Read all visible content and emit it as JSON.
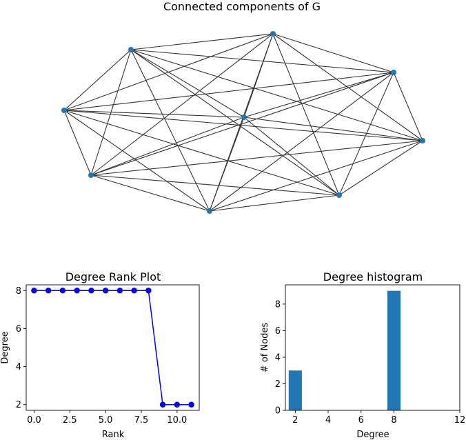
{
  "chart_data": [
    {
      "type": "network",
      "title": "Connected components of G",
      "node_color": "#1f77b4",
      "edge_color": "#333333",
      "nodes": [
        {
          "id": 0
        },
        {
          "id": 1
        },
        {
          "id": 2
        },
        {
          "id": 3
        },
        {
          "id": 4
        },
        {
          "id": 5
        },
        {
          "id": 6
        },
        {
          "id": 7
        },
        {
          "id": 8
        }
      ],
      "edges": [
        [
          0,
          1
        ],
        [
          0,
          2
        ],
        [
          0,
          3
        ],
        [
          0,
          4
        ],
        [
          0,
          5
        ],
        [
          0,
          6
        ],
        [
          0,
          7
        ],
        [
          0,
          8
        ],
        [
          1,
          2
        ],
        [
          1,
          3
        ],
        [
          1,
          4
        ],
        [
          1,
          5
        ],
        [
          1,
          6
        ],
        [
          1,
          7
        ],
        [
          1,
          8
        ],
        [
          2,
          3
        ],
        [
          2,
          4
        ],
        [
          2,
          5
        ],
        [
          2,
          6
        ],
        [
          2,
          7
        ],
        [
          2,
          8
        ],
        [
          3,
          4
        ],
        [
          3,
          5
        ],
        [
          3,
          6
        ],
        [
          3,
          7
        ],
        [
          3,
          8
        ],
        [
          4,
          5
        ],
        [
          4,
          6
        ],
        [
          4,
          7
        ],
        [
          4,
          8
        ],
        [
          5,
          6
        ],
        [
          5,
          7
        ],
        [
          5,
          8
        ],
        [
          6,
          7
        ],
        [
          6,
          8
        ],
        [
          7,
          8
        ]
      ]
    },
    {
      "type": "line",
      "title": "Degree Rank Plot",
      "xlabel": "Rank",
      "ylabel": "Degree",
      "color": "#0000ff",
      "x": [
        0,
        1,
        2,
        3,
        4,
        5,
        6,
        7,
        8,
        9,
        10,
        11
      ],
      "y": [
        8,
        8,
        8,
        8,
        8,
        8,
        8,
        8,
        8,
        2,
        2,
        2
      ],
      "xlim": [
        -0.55,
        11.55
      ],
      "ylim": [
        1.7,
        8.3
      ],
      "xticks": [
        0,
        2.5,
        5,
        7.5,
        10
      ],
      "xtick_labels": [
        "0.0",
        "2.5",
        "5.0",
        "7.5",
        "10.0"
      ],
      "yticks": [
        2,
        4,
        6,
        8
      ],
      "ytick_labels": [
        "2",
        "4",
        "6",
        "8"
      ]
    },
    {
      "type": "bar",
      "title": "Degree histogram",
      "xlabel": "Degree",
      "ylabel": "# of Nodes",
      "color": "#1f77b4",
      "categories": [
        2,
        8
      ],
      "values": [
        3,
        9
      ],
      "bar_width": 0.8,
      "xlim": [
        1.4,
        12
      ],
      "ylim": [
        0,
        9.45
      ],
      "xticks": [
        2,
        4,
        6,
        8,
        12
      ],
      "xtick_labels": [
        "2",
        "4",
        "6",
        "8",
        "12"
      ],
      "yticks": [
        0,
        2,
        4,
        6,
        8
      ],
      "ytick_labels": [
        "0",
        "2",
        "4",
        "6",
        "8"
      ]
    }
  ]
}
